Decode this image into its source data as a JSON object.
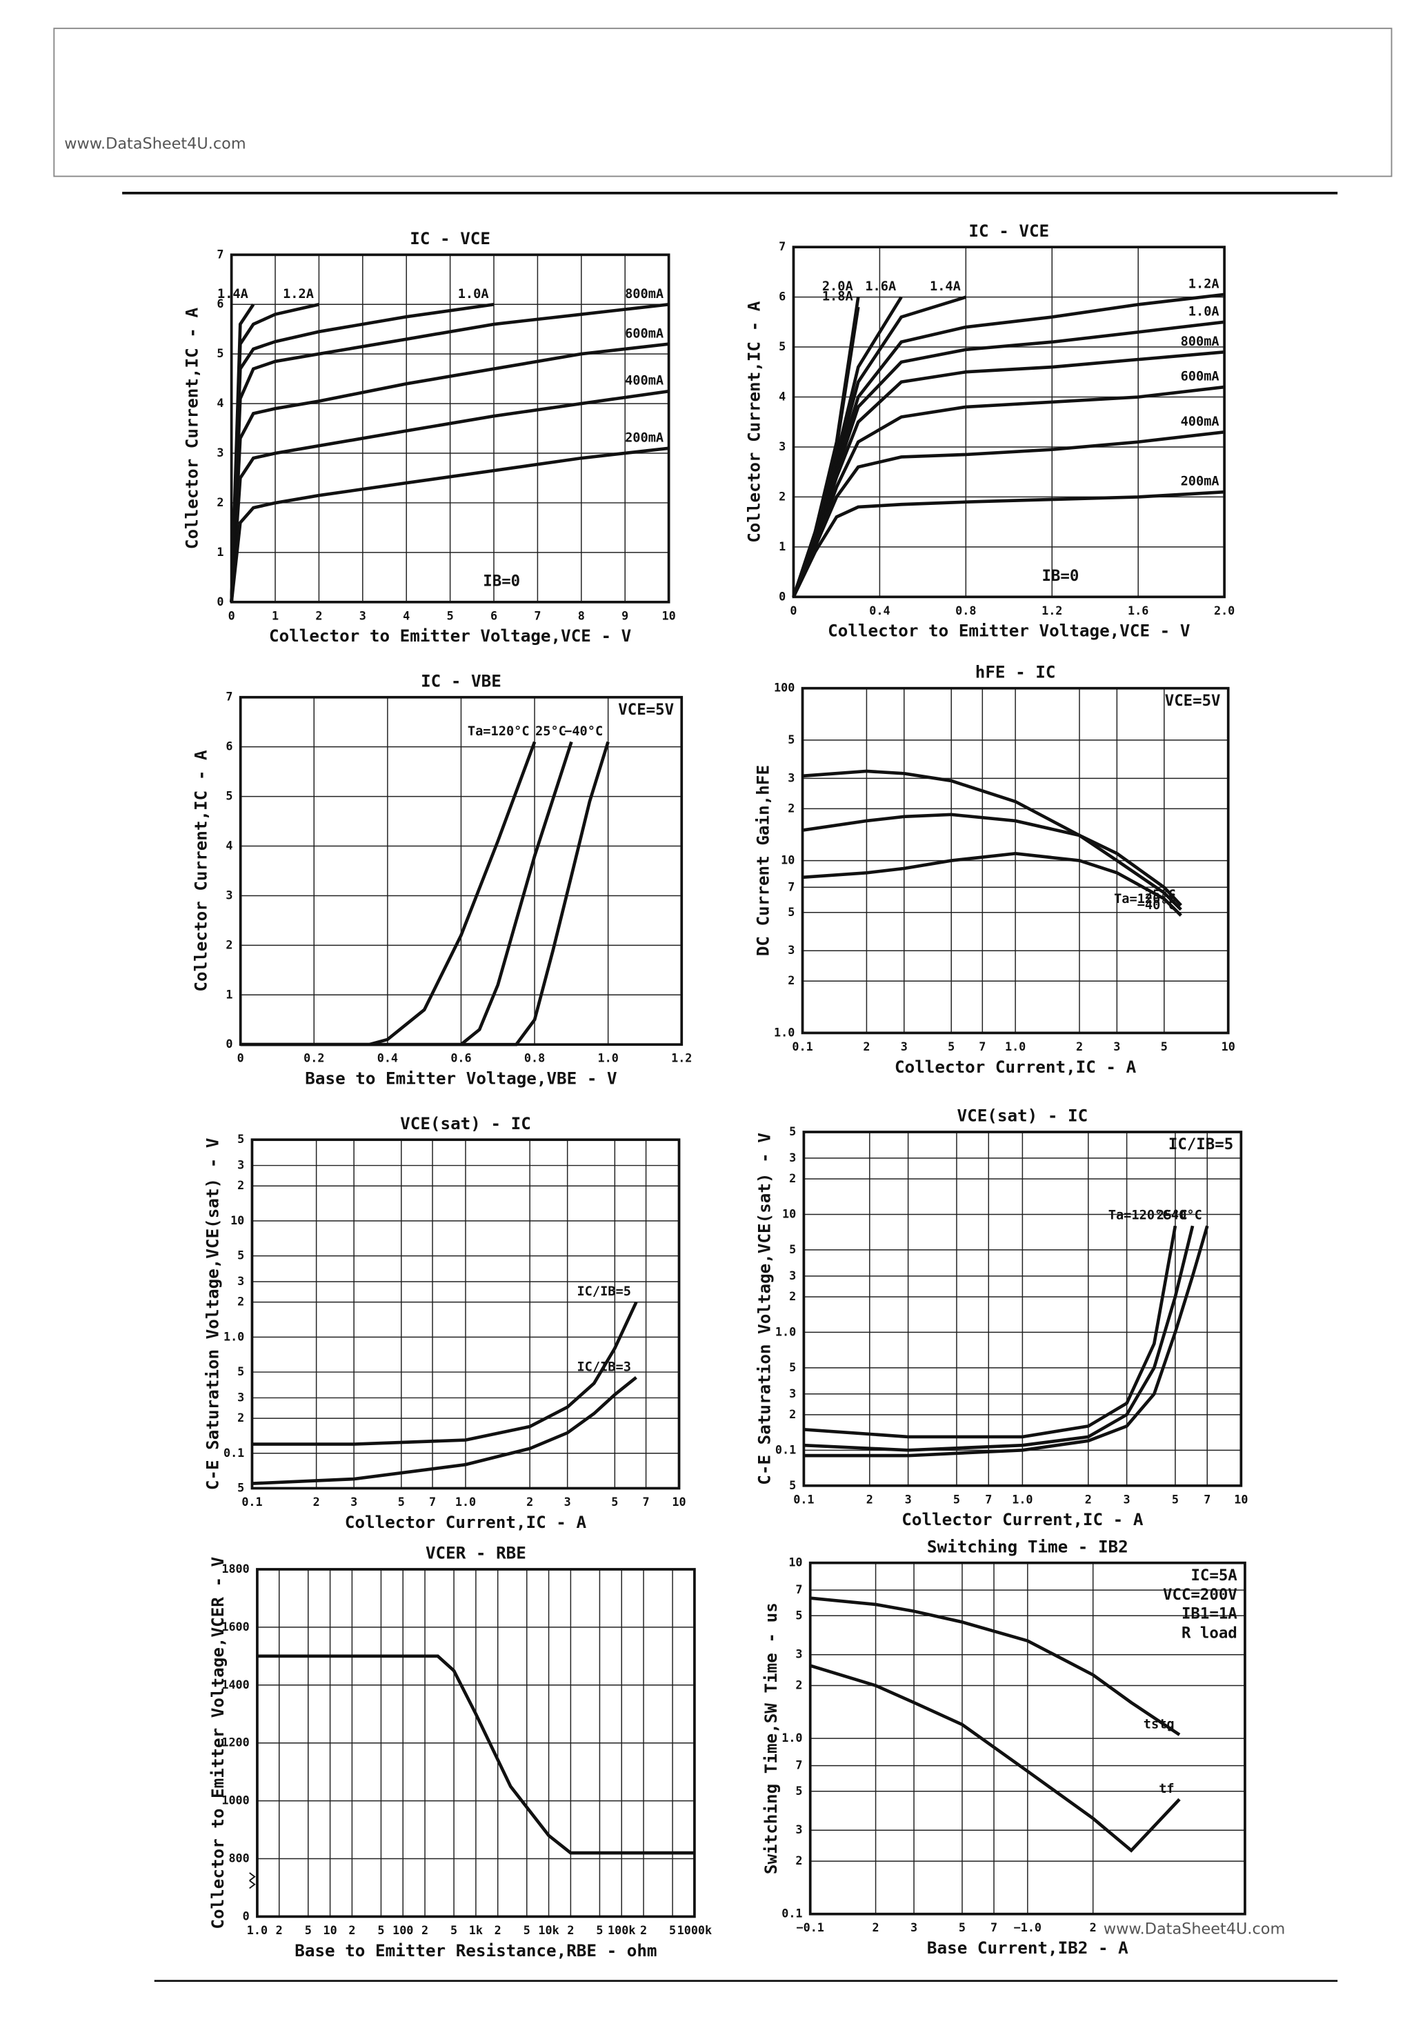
{
  "watermarks": [
    "www.DataSheet4U.com",
    "www.DataSheet4U.com"
  ],
  "chart_data": [
    {
      "type": "line",
      "title": "IC - VCE",
      "x_label": "Collector to Emitter Voltage,VCE - V",
      "y_label": "Collector Current,IC - A",
      "xlim": [
        0,
        10
      ],
      "ylim": [
        0,
        7
      ],
      "xticks": [
        0,
        1,
        2,
        3,
        4,
        5,
        6,
        7,
        8,
        9,
        10
      ],
      "yticks": [
        0,
        1,
        2,
        3,
        4,
        5,
        6,
        7
      ],
      "grid": true,
      "color": "#111111",
      "annotations": [
        "IB=0"
      ],
      "annotation_corner": "bottom",
      "x": [
        0,
        0.2,
        0.5,
        1,
        2,
        4,
        6,
        8,
        10
      ],
      "series": [
        {
          "name": "200mA",
          "values": [
            0,
            1.6,
            1.9,
            2.0,
            2.15,
            2.4,
            2.65,
            2.9,
            3.1
          ]
        },
        {
          "name": "400mA",
          "values": [
            0,
            2.5,
            2.9,
            3.0,
            3.15,
            3.45,
            3.75,
            4.0,
            4.25
          ]
        },
        {
          "name": "600mA",
          "values": [
            0,
            3.3,
            3.8,
            3.9,
            4.05,
            4.4,
            4.7,
            5.0,
            5.2
          ]
        },
        {
          "name": "800mA",
          "values": [
            0,
            4.1,
            4.7,
            4.85,
            5.0,
            5.3,
            5.6,
            5.8,
            6.0
          ]
        },
        {
          "name": "1.0A",
          "values": [
            0,
            4.7,
            5.1,
            5.25,
            5.45,
            5.75,
            6.0,
            null,
            null
          ]
        },
        {
          "name": "1.2A",
          "values": [
            0,
            5.2,
            5.6,
            5.8,
            6.0,
            null,
            null,
            null,
            null
          ]
        },
        {
          "name": "1.4A",
          "values": [
            0,
            5.6,
            6.0,
            null,
            null,
            null,
            null,
            null,
            null
          ]
        }
      ]
    },
    {
      "type": "line",
      "title": "IC - VCE",
      "x_label": "Collector to Emitter Voltage,VCE - V",
      "y_label": "Collector Current,IC - A",
      "xlim": [
        0,
        2
      ],
      "ylim": [
        0,
        7
      ],
      "xticks": [
        0,
        0.4,
        0.8,
        1.2,
        1.6,
        {
          "value": 2,
          "label": "2.0"
        }
      ],
      "yticks": [
        0,
        1,
        2,
        3,
        4,
        5,
        6,
        7
      ],
      "grid": true,
      "color": "#111111",
      "annotations": [
        "IB=0"
      ],
      "annotation_corner": "bottom",
      "x": [
        0,
        0.1,
        0.2,
        0.3,
        0.5,
        0.8,
        1.2,
        1.6,
        2.0
      ],
      "series": [
        {
          "name": "200mA",
          "values": [
            0,
            0.9,
            1.6,
            1.8,
            1.85,
            1.9,
            1.95,
            2.0,
            2.1
          ]
        },
        {
          "name": "400mA",
          "values": [
            0,
            1.0,
            2.0,
            2.6,
            2.8,
            2.85,
            2.95,
            3.1,
            3.3
          ]
        },
        {
          "name": "600mA",
          "values": [
            0,
            1.0,
            2.2,
            3.1,
            3.6,
            3.8,
            3.9,
            4.0,
            4.2
          ]
        },
        {
          "name": "800mA",
          "values": [
            0,
            1.1,
            2.4,
            3.5,
            4.3,
            4.5,
            4.6,
            4.75,
            4.9
          ]
        },
        {
          "name": "1.0A",
          "values": [
            0,
            1.1,
            2.5,
            3.8,
            4.7,
            4.95,
            5.1,
            5.3,
            5.5
          ]
        },
        {
          "name": "1.2A",
          "values": [
            0,
            1.2,
            2.6,
            4.0,
            5.1,
            5.4,
            5.6,
            5.85,
            6.05
          ]
        },
        {
          "name": "1.4A",
          "values": [
            0,
            1.2,
            2.7,
            4.3,
            5.6,
            6.0,
            null,
            null,
            null
          ]
        },
        {
          "name": "1.6A",
          "values": [
            0,
            1.25,
            2.8,
            4.6,
            6.0,
            null,
            null,
            null,
            null
          ]
        },
        {
          "name": "1.8A",
          "values": [
            0,
            1.3,
            3.0,
            5.8,
            null,
            null,
            null,
            null,
            null
          ]
        },
        {
          "name": "2.0A",
          "values": [
            0,
            1.3,
            3.1,
            6.0,
            null,
            null,
            null,
            null,
            null
          ]
        }
      ]
    },
    {
      "type": "line",
      "title": "IC - VBE",
      "x_label": "Base to Emitter Voltage,VBE - V",
      "y_label": "Collector Current,IC - A",
      "xlim": [
        0,
        1.2
      ],
      "ylim": [
        0,
        7
      ],
      "xticks": [
        0,
        0.2,
        0.4,
        0.6,
        0.8,
        {
          "value": 1,
          "label": "1.0"
        },
        1.2
      ],
      "yticks": [
        0,
        1,
        2,
        3,
        4,
        5,
        6,
        7
      ],
      "grid": true,
      "color": "#111111",
      "annotations": [
        "VCE=5V"
      ],
      "annotation_corner": "top-right",
      "series": [
        {
          "name": "Ta=120°C",
          "x": [
            0,
            0.35,
            0.4,
            0.5,
            0.6,
            0.7,
            0.8
          ],
          "values": [
            0,
            0,
            0.1,
            0.7,
            2.2,
            4.1,
            6.1
          ]
        },
        {
          "name": "25°C",
          "x": [
            0,
            0.6,
            0.65,
            0.7,
            0.8,
            0.9
          ],
          "values": [
            0,
            0,
            0.3,
            1.2,
            3.8,
            6.1
          ]
        },
        {
          "name": "−40°C",
          "x": [
            0,
            0.75,
            0.8,
            0.85,
            0.9,
            0.95,
            1.0
          ],
          "values": [
            0,
            0,
            0.5,
            1.9,
            3.4,
            4.9,
            6.1
          ]
        }
      ]
    },
    {
      "type": "line",
      "title": "hFE - IC",
      "x_label": "Collector Current,IC - A",
      "y_label": "DC Current Gain,hFE",
      "xlog": true,
      "ylog": true,
      "xlim": [
        0.1,
        10
      ],
      "ylim": [
        1,
        100
      ],
      "xticks": [
        0.1,
        {
          "value": 0.2,
          "label": "2"
        },
        {
          "value": 0.3,
          "label": "3"
        },
        {
          "value": 0.5,
          "label": "5"
        },
        {
          "value": 0.7,
          "label": "7"
        },
        {
          "value": 1,
          "label": "1.0"
        },
        2,
        3,
        5,
        10
      ],
      "yticks": [
        {
          "value": 1,
          "label": "1.0"
        },
        2,
        3,
        5,
        7,
        10,
        {
          "value": 20,
          "label": "2"
        },
        {
          "value": 30,
          "label": "3"
        },
        {
          "value": 50,
          "label": "5"
        },
        100
      ],
      "grid": true,
      "color": "#111111",
      "annotations": [
        "VCE=5V"
      ],
      "annotation_corner": "top-right",
      "x": [
        0.1,
        0.2,
        0.3,
        0.5,
        1,
        2,
        3,
        5,
        6
      ],
      "series": [
        {
          "name": "Ta=120°C",
          "values": [
            31,
            33,
            32,
            29,
            22,
            14,
            10,
            6.5,
            5.2
          ]
        },
        {
          "name": "25°C",
          "values": [
            15,
            17,
            18,
            18.5,
            17,
            14,
            11,
            7,
            5.5
          ]
        },
        {
          "name": "−40°C",
          "values": [
            8,
            8.5,
            9,
            10,
            11,
            10,
            8.5,
            6,
            4.8
          ]
        }
      ]
    },
    {
      "type": "line",
      "title": "VCE(sat) - IC",
      "x_label": "Collector Current,IC - A",
      "y_label": "C-E Saturation Voltage,VCE(sat) - V",
      "xlog": true,
      "ylog": true,
      "xlim": [
        0.1,
        10
      ],
      "ylim": [
        0.05,
        50
      ],
      "xticks": [
        0.1,
        {
          "value": 0.2,
          "label": "2"
        },
        {
          "value": 0.3,
          "label": "3"
        },
        {
          "value": 0.5,
          "label": "5"
        },
        {
          "value": 0.7,
          "label": "7"
        },
        {
          "value": 1,
          "label": "1.0"
        },
        2,
        3,
        5,
        7,
        10
      ],
      "yticks": [
        {
          "value": 0.05,
          "label": "5"
        },
        0.1,
        {
          "value": 0.2,
          "label": "2"
        },
        {
          "value": 0.3,
          "label": "3"
        },
        {
          "value": 0.5,
          "label": "5"
        },
        {
          "value": 1,
          "label": "1.0"
        },
        2,
        3,
        5,
        10,
        {
          "value": 20,
          "label": "2"
        },
        {
          "value": 30,
          "label": "3"
        },
        {
          "value": 50,
          "label": "5"
        }
      ],
      "grid": true,
      "color": "#111111",
      "x": [
        0.1,
        0.3,
        1,
        2,
        3,
        4,
        5,
        6.3
      ],
      "series": [
        {
          "name": "IC/IB=5",
          "values": [
            0.12,
            0.12,
            0.13,
            0.17,
            0.25,
            0.4,
            0.8,
            2.0
          ]
        },
        {
          "name": "IC/IB=3",
          "values": [
            0.055,
            0.06,
            0.08,
            0.11,
            0.15,
            0.22,
            0.32,
            0.45
          ]
        }
      ]
    },
    {
      "type": "line",
      "title": "VCE(sat) - IC",
      "x_label": "Collector Current,IC - A",
      "y_label": "C-E Saturation Voltage,VCE(sat) - V",
      "xlog": true,
      "ylog": true,
      "xlim": [
        0.1,
        10
      ],
      "ylim": [
        0.05,
        50
      ],
      "xticks": [
        0.1,
        {
          "value": 0.2,
          "label": "2"
        },
        {
          "value": 0.3,
          "label": "3"
        },
        {
          "value": 0.5,
          "label": "5"
        },
        {
          "value": 0.7,
          "label": "7"
        },
        {
          "value": 1,
          "label": "1.0"
        },
        2,
        3,
        5,
        7,
        10
      ],
      "yticks": [
        {
          "value": 0.05,
          "label": "5"
        },
        0.1,
        {
          "value": 0.2,
          "label": "2"
        },
        {
          "value": 0.3,
          "label": "3"
        },
        {
          "value": 0.5,
          "label": "5"
        },
        {
          "value": 1,
          "label": "1.0"
        },
        2,
        3,
        5,
        10,
        {
          "value": 20,
          "label": "2"
        },
        {
          "value": 30,
          "label": "3"
        },
        {
          "value": 50,
          "label": "5"
        }
      ],
      "grid": true,
      "color": "#111111",
      "annotations": [
        "IC/IB=5"
      ],
      "annotation_corner": "top-right",
      "x": [
        0.1,
        0.3,
        1,
        2,
        3,
        4,
        5,
        6,
        7
      ],
      "series": [
        {
          "name": "Ta=120°C",
          "values": [
            0.15,
            0.13,
            0.13,
            0.16,
            0.25,
            0.8,
            8,
            null,
            null
          ]
        },
        {
          "name": "25°C",
          "values": [
            0.11,
            0.1,
            0.11,
            0.13,
            0.2,
            0.5,
            2,
            8,
            null
          ]
        },
        {
          "name": "−40°C",
          "values": [
            0.09,
            0.09,
            0.1,
            0.12,
            0.16,
            0.3,
            1,
            3,
            8
          ]
        }
      ]
    },
    {
      "type": "line",
      "title": "VCER - RBE",
      "x_label": "Base to Emitter Resistance,RBE - ohm",
      "y_label": "Collector to Emitter Voltage,VCER - V",
      "xlog": true,
      "xlim": [
        1,
        1000000
      ],
      "ylim": [
        600,
        1800
      ],
      "ybreak_label": 0,
      "xticks": [
        {
          "value": 1,
          "label": "1.0"
        },
        2,
        5,
        10,
        {
          "value": 20,
          "label": "2"
        },
        {
          "value": 50,
          "label": "5"
        },
        100,
        {
          "value": 200,
          "label": "2"
        },
        {
          "value": 500,
          "label": "5"
        },
        {
          "value": 1000,
          "label": "1k"
        },
        {
          "value": 2000,
          "label": "2"
        },
        {
          "value": 5000,
          "label": "5"
        },
        {
          "value": 10000,
          "label": "10k"
        },
        {
          "value": 20000,
          "label": "2"
        },
        {
          "value": 50000,
          "label": "5"
        },
        {
          "value": 100000,
          "label": "100k"
        },
        {
          "value": 200000,
          "label": "2"
        },
        {
          "value": 500000,
          "label": "5"
        },
        {
          "value": 1000000,
          "label": "1000k"
        }
      ],
      "yticks": [
        800,
        1000,
        1200,
        1400,
        1600,
        1800
      ],
      "grid": true,
      "color": "#111111",
      "x": [
        1,
        300,
        500,
        1000,
        3000,
        10000,
        20000,
        1000000
      ],
      "series": [
        {
          "name": "VCER",
          "values": [
            1500,
            1500,
            1450,
            1300,
            1050,
            880,
            820,
            820
          ]
        }
      ]
    },
    {
      "type": "line",
      "title": "Switching Time - IB2",
      "x_label": "Base Current,IB2 - A",
      "y_label": "Switching Time,SW Time - us",
      "xlog": true,
      "ylog": true,
      "xlim": [
        -0.1,
        -10
      ],
      "ylim": [
        0.1,
        10
      ],
      "xticks": [
        {
          "value": -0.1,
          "label": "−0.1"
        },
        {
          "value": -0.2,
          "label": "2"
        },
        {
          "value": -0.3,
          "label": "3"
        },
        {
          "value": -0.5,
          "label": "5"
        },
        {
          "value": -0.7,
          "label": "7"
        },
        {
          "value": -1,
          "label": "−1.0"
        },
        {
          "value": -2,
          "label": "2"
        }
      ],
      "yticks": [
        0.1,
        {
          "value": 0.2,
          "label": "2"
        },
        {
          "value": 0.3,
          "label": "3"
        },
        {
          "value": 0.5,
          "label": "5"
        },
        {
          "value": 0.7,
          "label": "7"
        },
        {
          "value": 1,
          "label": "1.0"
        },
        2,
        3,
        5,
        7,
        10
      ],
      "grid": true,
      "color": "#111111",
      "annotations": [
        "IC=5A",
        "VCC=200V",
        "IB1=1A",
        "R load"
      ],
      "annotation_corner": "top-right",
      "x": [
        -0.1,
        -0.2,
        -0.3,
        -0.5,
        -1,
        -2,
        -3,
        -5
      ],
      "series": [
        {
          "name": "tstg",
          "values": [
            6.3,
            5.8,
            5.3,
            4.6,
            3.6,
            2.3,
            1.6,
            1.05
          ]
        },
        {
          "name": "tf",
          "values": [
            2.6,
            2.0,
            1.6,
            1.2,
            0.65,
            0.35,
            0.23,
            0.45
          ]
        }
      ]
    }
  ]
}
